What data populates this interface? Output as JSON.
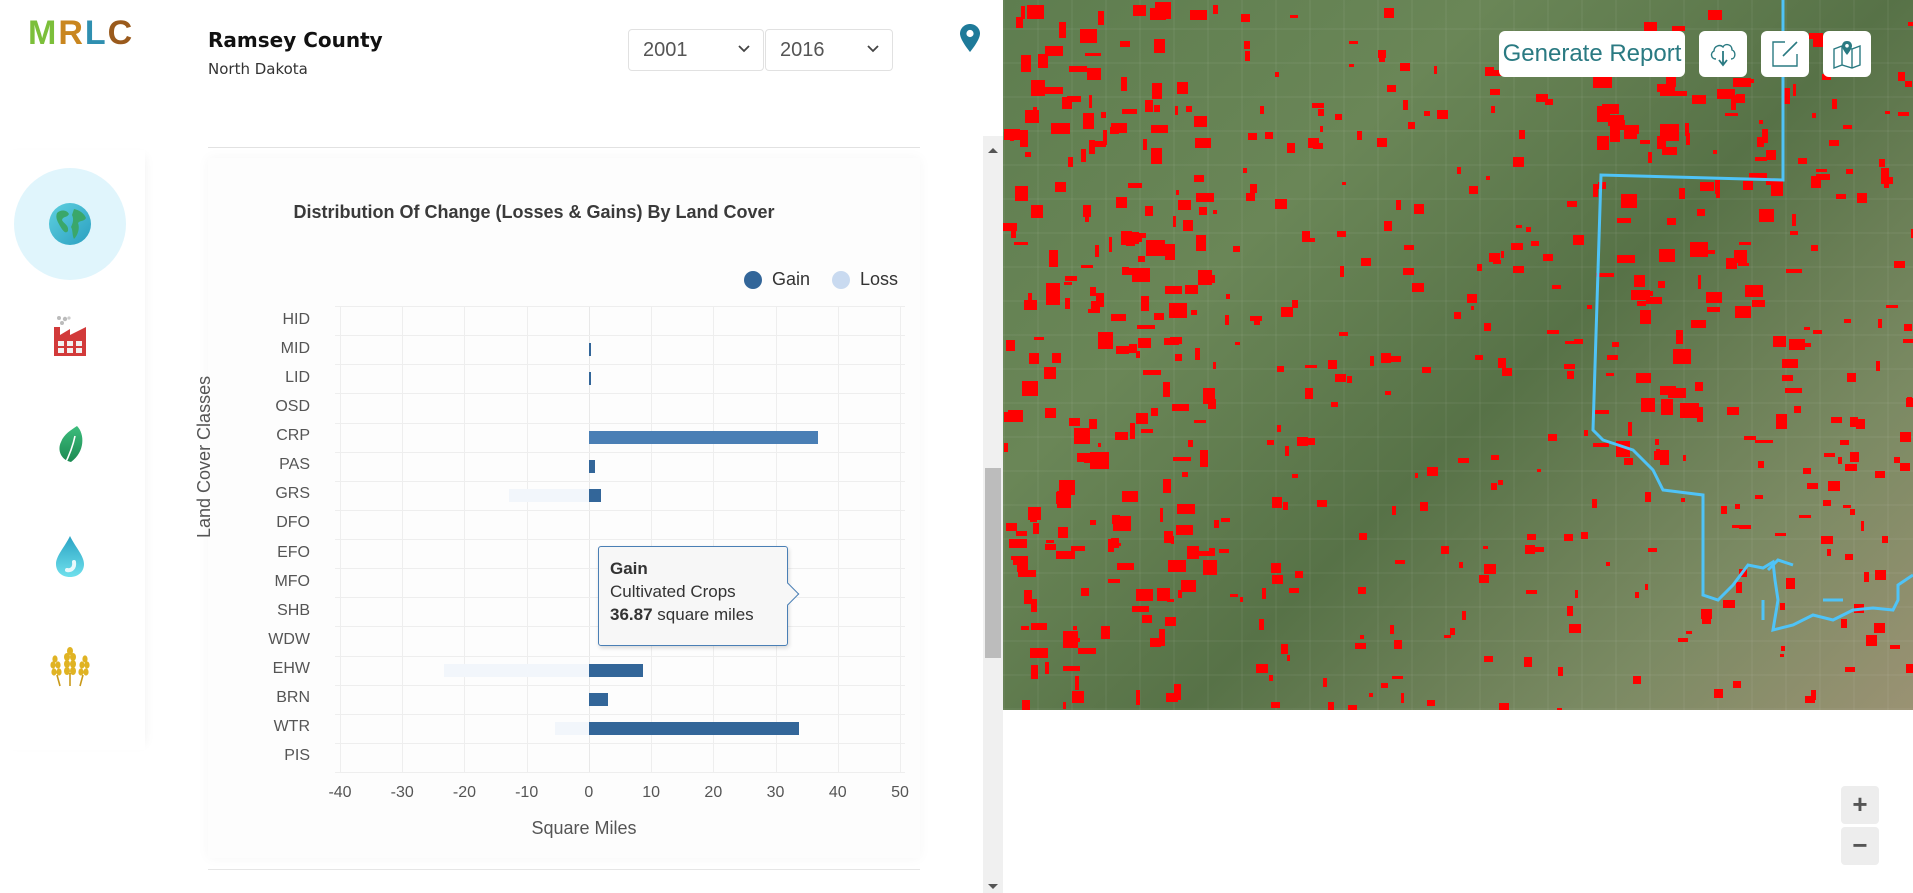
{
  "brand": {
    "logo_letters": [
      "M",
      "R",
      "L",
      "C"
    ]
  },
  "header": {
    "county": "Ramsey County",
    "state": "North Dakota",
    "start_year": "2001",
    "end_year": "2016",
    "location_icon": "map-pin-icon"
  },
  "sidebar": {
    "items": [
      {
        "name": "globe",
        "icon": "globe-icon",
        "active": true
      },
      {
        "name": "factory",
        "icon": "factory-icon",
        "active": false
      },
      {
        "name": "leaf",
        "icon": "leaf-icon",
        "active": false
      },
      {
        "name": "water",
        "icon": "water-drop-icon",
        "active": false
      },
      {
        "name": "wheat",
        "icon": "wheat-icon",
        "active": false
      }
    ]
  },
  "chart": {
    "title": "Distribution Of Change (Losses & Gains) By Land Cover",
    "legend": [
      {
        "label": "Gain",
        "color": "#336699"
      },
      {
        "label": "Loss",
        "color": "#c9daf0"
      }
    ],
    "y_title": "Land Cover Classes",
    "x_title": "Square Miles",
    "tooltip": {
      "series": "Gain",
      "category": "Cultivated Crops",
      "value": "36.87",
      "unit": "square miles"
    }
  },
  "chart_data": {
    "type": "bar",
    "orientation": "horizontal",
    "title": "Distribution Of Change (Losses & Gains) By Land Cover",
    "xlabel": "Square Miles",
    "ylabel": "Land Cover Classes",
    "xlim": [
      -40,
      50
    ],
    "x_ticks": [
      -40,
      -30,
      -20,
      -10,
      0,
      10,
      20,
      30,
      40,
      50
    ],
    "grid": true,
    "legend_position": "top-right",
    "categories": [
      "HID",
      "MID",
      "LID",
      "OSD",
      "CRP",
      "PAS",
      "GRS",
      "DFO",
      "EFO",
      "MFO",
      "SHB",
      "WDW",
      "EHW",
      "BRN",
      "WTR",
      "PIS"
    ],
    "series": [
      {
        "name": "Gain",
        "color": "#336699",
        "values": [
          0,
          0.3,
          0.3,
          0,
          36.87,
          1.0,
          2.0,
          0,
          0,
          0,
          0,
          0,
          8.7,
          3.0,
          33.8,
          0
        ]
      },
      {
        "name": "Loss",
        "color": "#c9daf0",
        "values": [
          0,
          0,
          0,
          0,
          0,
          0,
          -12.8,
          0,
          0,
          0,
          0,
          0,
          -23.3,
          0,
          -5.4,
          0
        ]
      }
    ],
    "annotations": [
      "Tooltip: Gain — Cultivated Crops — 36.87 square miles"
    ]
  },
  "map": {
    "generate_report_label": "Generate Report",
    "buttons": [
      "cloud-download-icon",
      "expand-icon",
      "map-layers-icon"
    ],
    "zoom_in_label": "+",
    "zoom_out_label": "−",
    "overlay_color": "#ff0000",
    "boundary_color": "#4fc3f7"
  }
}
